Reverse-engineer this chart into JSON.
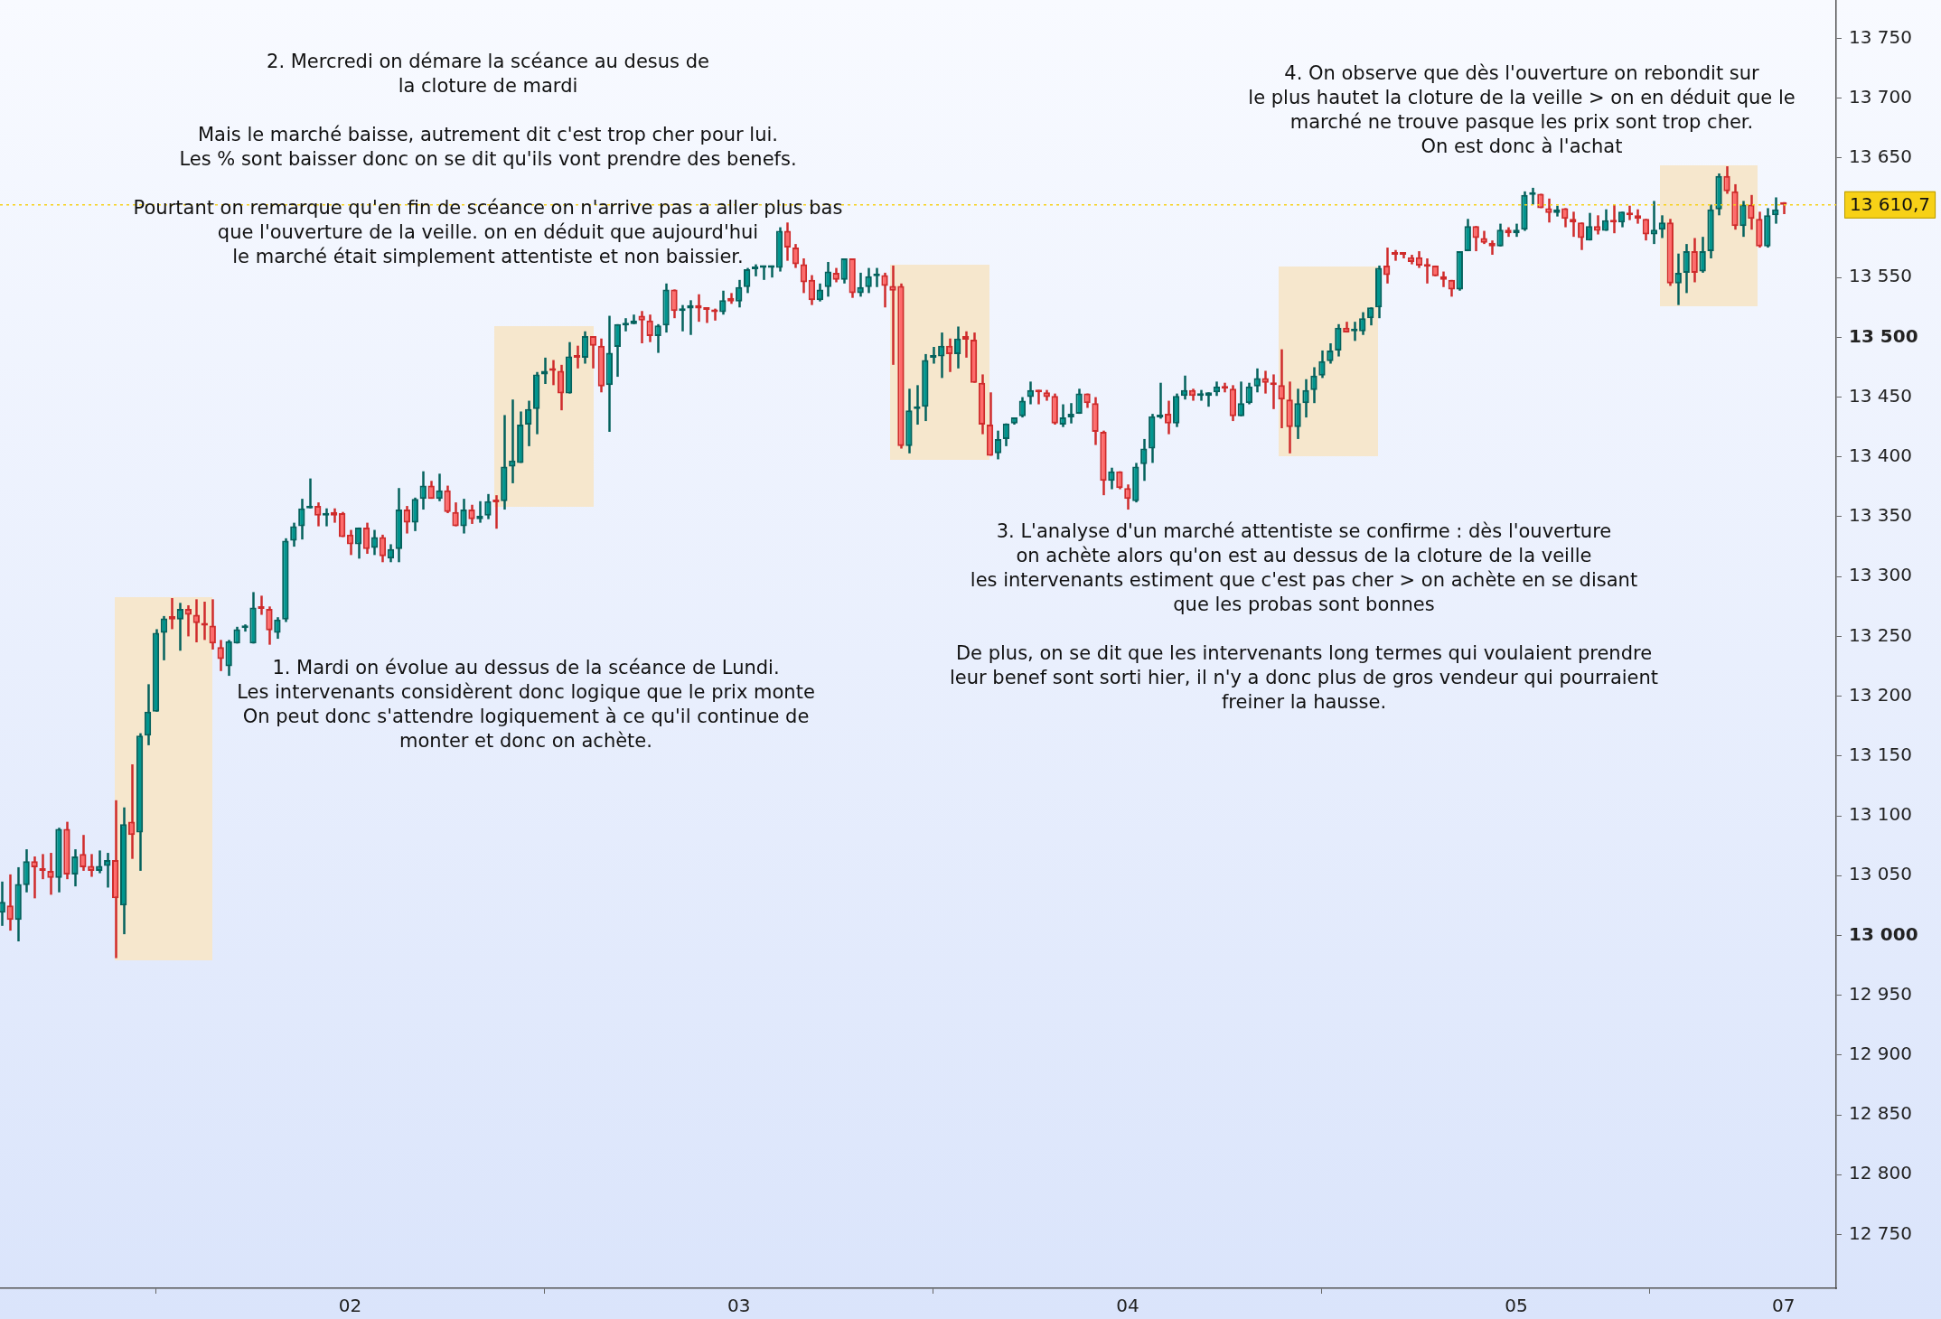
{
  "chart_data": {
    "type": "candlestick",
    "annotations": [
      "2. Mercredi on démare la scéance au desus de\nla cloture de mardi\n\nMais le marché baisse, autrement dit c'est trop cher pour lui.\nLes % sont baisser donc on se dit qu'ils vont prendre des benefs.\n\nPourtant on remarque qu'en fin de scéance on n'arrive pas a aller plus bas\nque l'ouverture de la veille. on en déduit que aujourd'hui\nle marché était simplement attentiste et non baissier.",
      "4. On observe que dès l'ouverture on rebondit sur\nle plus hautet la cloture de la veille > on en déduit que le\nmarché ne trouve pasque les prix sont trop cher.\nOn est donc à l'achat",
      "1. Mardi on évolue au dessus de la scéance de Lundi.\nLes intervenants considèrent donc logique que le prix monte\nOn peut donc s'attendre logiquement à ce qu'il continue de\nmonter et donc on achète.",
      "3. L'analyse d'un marché attentiste se confirme : dès l'ouverture\non achète alors qu'on est au dessus de la cloture de la veille\nles intervenants estiment que c'est pas cher > on achète en se disant\nque les probas sont bonnes\n\nDe plus, on se dit que les intervenants long termes qui voulaient prendre\nleur benef sont sorti hier, il n'y a donc plus de gros vendeur qui pourraient\nfreiner la hausse."
    ],
    "categories": [
      null,
      null,
      null,
      null,
      null,
      null,
      null,
      null,
      null,
      null,
      null,
      null,
      null,
      null,
      null,
      null,
      null,
      null,
      null,
      null,
      null,
      null,
      null,
      null,
      null,
      null,
      null,
      null,
      null,
      null,
      null,
      null,
      null,
      null,
      null,
      null,
      null,
      null,
      null,
      null,
      null,
      null,
      null,
      "02",
      null,
      null,
      null,
      null,
      null,
      null,
      null,
      null,
      null,
      null,
      null,
      null,
      null,
      null,
      null,
      null,
      null,
      null,
      null,
      null,
      null,
      null,
      null,
      null,
      null,
      null,
      null,
      null,
      null,
      null,
      null,
      null,
      null,
      null,
      null,
      null,
      null,
      null,
      null,
      null,
      null,
      null,
      null,
      null,
      null,
      null,
      null,
      "03",
      null,
      null,
      null,
      null,
      null,
      null,
      null,
      null,
      null,
      null,
      null,
      null,
      null,
      null,
      null,
      null,
      null,
      null,
      null,
      null,
      null,
      null,
      null,
      null,
      null,
      null,
      null,
      null,
      null,
      null,
      null,
      null,
      null,
      null,
      null,
      null,
      null,
      null,
      null,
      null,
      null,
      null,
      null,
      null,
      null,
      null,
      null,
      "04",
      null,
      null,
      null,
      null,
      null,
      null,
      null,
      null,
      null,
      null,
      null,
      null,
      null,
      null,
      null,
      null,
      null,
      null,
      null,
      null,
      null,
      null,
      null,
      null,
      null,
      null,
      null,
      null,
      null,
      null,
      null,
      null,
      null,
      null,
      null,
      null,
      null,
      null,
      null,
      null,
      null,
      null,
      null,
      null,
      null,
      null,
      null,
      "05",
      null,
      null,
      null,
      null,
      null,
      null,
      null,
      null,
      null,
      null,
      null,
      null,
      null,
      null,
      null,
      null,
      null,
      null,
      null,
      null,
      null,
      null,
      null,
      null,
      null,
      null,
      null,
      null,
      null,
      null,
      null,
      null,
      "07"
    ],
    "ohlc": [
      [
        13019,
        13045,
        13008,
        13028
      ],
      [
        13025,
        13051,
        13004,
        13013
      ],
      [
        13013,
        13057,
        12995,
        13043
      ],
      [
        13042,
        13072,
        13036,
        13062
      ],
      [
        13062,
        13066,
        13031,
        13057
      ],
      [
        13055,
        13068,
        13047,
        13054
      ],
      [
        13054,
        13069,
        13034,
        13048
      ],
      [
        13048,
        13090,
        13036,
        13089
      ],
      [
        13089,
        13095,
        13047,
        13051
      ],
      [
        13051,
        13072,
        13041,
        13066
      ],
      [
        13068,
        13084,
        13054,
        13057
      ],
      [
        13058,
        13068,
        13049,
        13054
      ],
      [
        13054,
        13071,
        13052,
        13058
      ],
      [
        13058,
        13069,
        13040,
        13063
      ],
      [
        13063,
        13113,
        12981,
        13031
      ],
      [
        13025,
        13107,
        13001,
        13093
      ],
      [
        13095,
        13143,
        13064,
        13084
      ],
      [
        13086,
        13169,
        13054,
        13167
      ],
      [
        13167,
        13210,
        13159,
        13187
      ],
      [
        13187,
        13256,
        13187,
        13253
      ],
      [
        13253,
        13267,
        13230,
        13265
      ],
      [
        13267,
        13282,
        13256,
        13264
      ],
      [
        13264,
        13278,
        13238,
        13273
      ],
      [
        13273,
        13276,
        13250,
        13268
      ],
      [
        13268,
        13281,
        13245,
        13261
      ],
      [
        13261,
        13279,
        13247,
        13259
      ],
      [
        13259,
        13281,
        13239,
        13244
      ],
      [
        13241,
        13247,
        13221,
        13231
      ],
      [
        13225,
        13247,
        13217,
        13246
      ],
      [
        13244,
        13258,
        13244,
        13256
      ],
      [
        13257,
        13260,
        13254,
        13258
      ],
      [
        13244,
        13287,
        13244,
        13274
      ],
      [
        13274,
        13284,
        13268,
        13273
      ],
      [
        13273,
        13275,
        13243,
        13255
      ],
      [
        13253,
        13266,
        13248,
        13264
      ],
      [
        13264,
        13332,
        13262,
        13330
      ],
      [
        13330,
        13345,
        13325,
        13342
      ],
      [
        13342,
        13365,
        13331,
        13357
      ],
      [
        13357,
        13382,
        13357,
        13359
      ],
      [
        13359,
        13362,
        13342,
        13351
      ],
      [
        13351,
        13357,
        13342,
        13353
      ],
      [
        13354,
        13357,
        13345,
        13351
      ],
      [
        13353,
        13354,
        13333,
        13333
      ],
      [
        13335,
        13339,
        13318,
        13327
      ],
      [
        13327,
        13341,
        13315,
        13341
      ],
      [
        13341,
        13345,
        13319,
        13323
      ],
      [
        13324,
        13339,
        13318,
        13333
      ],
      [
        13333,
        13335,
        13312,
        13317
      ],
      [
        13315,
        13327,
        13312,
        13323
      ],
      [
        13323,
        13374,
        13312,
        13356
      ],
      [
        13356,
        13359,
        13336,
        13345
      ],
      [
        13345,
        13366,
        13338,
        13365
      ],
      [
        13365,
        13388,
        13356,
        13376
      ],
      [
        13376,
        13380,
        13365,
        13365
      ],
      [
        13365,
        13386,
        13363,
        13372
      ],
      [
        13372,
        13376,
        13353,
        13354
      ],
      [
        13354,
        13362,
        13342,
        13342
      ],
      [
        13342,
        13365,
        13336,
        13356
      ],
      [
        13356,
        13360,
        13344,
        13348
      ],
      [
        13348,
        13363,
        13345,
        13351
      ],
      [
        13351,
        13369,
        13348,
        13363
      ],
      [
        13363,
        13368,
        13340,
        13362
      ],
      [
        13363,
        13435,
        13356,
        13392
      ],
      [
        13392,
        13448,
        13378,
        13397
      ],
      [
        13395,
        13438,
        13395,
        13427
      ],
      [
        13427,
        13447,
        13409,
        13440
      ],
      [
        13440,
        13471,
        13419,
        13469
      ],
      [
        13469,
        13483,
        13461,
        13472
      ],
      [
        13474,
        13481,
        13460,
        13472
      ],
      [
        13472,
        13477,
        13439,
        13453
      ],
      [
        13453,
        13496,
        13453,
        13484
      ],
      [
        13484,
        13493,
        13474,
        13483
      ],
      [
        13483,
        13505,
        13478,
        13501
      ],
      [
        13501,
        13501,
        13474,
        13493
      ],
      [
        13493,
        13499,
        13454,
        13459
      ],
      [
        13460,
        13518,
        13421,
        13487
      ],
      [
        13492,
        13511,
        13467,
        13511
      ],
      [
        13510,
        13516,
        13505,
        13511
      ],
      [
        13511,
        13519,
        13511,
        13514
      ],
      [
        13518,
        13522,
        13495,
        13514
      ],
      [
        13514,
        13519,
        13496,
        13501
      ],
      [
        13501,
        13511,
        13487,
        13510
      ],
      [
        13510,
        13545,
        13504,
        13540
      ],
      [
        13540,
        13540,
        13516,
        13522
      ],
      [
        13522,
        13527,
        13505,
        13524
      ],
      [
        13524,
        13531,
        13502,
        13527
      ],
      [
        13527,
        13536,
        13513,
        13524
      ],
      [
        13524,
        13525,
        13512,
        13523
      ],
      [
        13522,
        13524,
        13514,
        13521
      ],
      [
        13521,
        13539,
        13519,
        13531
      ],
      [
        13533,
        13537,
        13528,
        13530
      ],
      [
        13530,
        13548,
        13525,
        13542
      ],
      [
        13542,
        13558,
        13537,
        13557
      ],
      [
        13557,
        13561,
        13551,
        13558
      ],
      [
        13558,
        13560,
        13548,
        13558
      ],
      [
        13558,
        13560,
        13550,
        13558
      ],
      [
        13558,
        13592,
        13555,
        13589
      ],
      [
        13589,
        13596,
        13564,
        13575
      ],
      [
        13575,
        13578,
        13558,
        13561
      ],
      [
        13561,
        13566,
        13537,
        13546
      ],
      [
        13548,
        13552,
        13527,
        13531
      ],
      [
        13531,
        13545,
        13530,
        13540
      ],
      [
        13542,
        13563,
        13534,
        13555
      ],
      [
        13554,
        13558,
        13546,
        13548
      ],
      [
        13548,
        13566,
        13545,
        13566
      ],
      [
        13566,
        13566,
        13533,
        13537
      ],
      [
        13537,
        13554,
        13534,
        13542
      ],
      [
        13542,
        13558,
        13537,
        13551
      ],
      [
        13551,
        13558,
        13542,
        13552
      ],
      [
        13552,
        13554,
        13525,
        13543
      ],
      [
        13543,
        13560,
        13477,
        13539
      ],
      [
        13543,
        13545,
        13407,
        13409
      ],
      [
        13409,
        13457,
        13403,
        13439
      ],
      [
        13440,
        13460,
        13427,
        13441
      ],
      [
        13442,
        13486,
        13430,
        13481
      ],
      [
        13483,
        13492,
        13478,
        13484
      ],
      [
        13484,
        13504,
        13466,
        13493
      ],
      [
        13493,
        13499,
        13471,
        13486
      ],
      [
        13486,
        13509,
        13474,
        13499
      ],
      [
        13501,
        13505,
        13483,
        13498
      ],
      [
        13498,
        13504,
        13462,
        13462
      ],
      [
        13462,
        13469,
        13419,
        13427
      ],
      [
        13427,
        13454,
        13401,
        13401
      ],
      [
        13403,
        13422,
        13398,
        13415
      ],
      [
        13415,
        13428,
        13409,
        13428
      ],
      [
        13428,
        13433,
        13427,
        13433
      ],
      [
        13434,
        13450,
        13433,
        13447
      ],
      [
        13450,
        13463,
        13444,
        13456
      ],
      [
        13456,
        13456,
        13444,
        13454
      ],
      [
        13454,
        13456,
        13447,
        13450
      ],
      [
        13451,
        13453,
        13427,
        13428
      ],
      [
        13427,
        13444,
        13425,
        13433
      ],
      [
        13433,
        13445,
        13428,
        13436
      ],
      [
        13436,
        13457,
        13436,
        13453
      ],
      [
        13453,
        13453,
        13441,
        13445
      ],
      [
        13445,
        13450,
        13410,
        13421
      ],
      [
        13421,
        13422,
        13368,
        13380
      ],
      [
        13380,
        13391,
        13373,
        13388
      ],
      [
        13388,
        13388,
        13373,
        13374
      ],
      [
        13374,
        13377,
        13356,
        13365
      ],
      [
        13363,
        13395,
        13362,
        13392
      ],
      [
        13394,
        13415,
        13380,
        13407
      ],
      [
        13407,
        13436,
        13395,
        13434
      ],
      [
        13433,
        13462,
        13432,
        13434
      ],
      [
        13436,
        13447,
        13419,
        13428
      ],
      [
        13428,
        13453,
        13425,
        13451
      ],
      [
        13451,
        13468,
        13448,
        13456
      ],
      [
        13456,
        13457,
        13447,
        13451
      ],
      [
        13451,
        13456,
        13447,
        13451
      ],
      [
        13451,
        13454,
        13442,
        13454
      ],
      [
        13454,
        13463,
        13451,
        13459
      ],
      [
        13459,
        13462,
        13454,
        13457
      ],
      [
        13457,
        13460,
        13430,
        13434
      ],
      [
        13434,
        13463,
        13434,
        13445
      ],
      [
        13445,
        13462,
        13444,
        13459
      ],
      [
        13459,
        13474,
        13454,
        13466
      ],
      [
        13466,
        13472,
        13453,
        13462
      ],
      [
        13462,
        13469,
        13440,
        13460
      ],
      [
        13460,
        13490,
        13424,
        13448
      ],
      [
        13448,
        13463,
        13403,
        13425
      ],
      [
        13425,
        13457,
        13415,
        13445
      ],
      [
        13445,
        13465,
        13433,
        13456
      ],
      [
        13456,
        13475,
        13445,
        13468
      ],
      [
        13468,
        13489,
        13466,
        13480
      ],
      [
        13480,
        13495,
        13478,
        13489
      ],
      [
        13489,
        13511,
        13484,
        13508
      ],
      [
        13508,
        13513,
        13504,
        13504
      ],
      [
        13505,
        13513,
        13497,
        13505
      ],
      [
        13505,
        13521,
        13502,
        13516
      ],
      [
        13516,
        13525,
        13510,
        13525
      ],
      [
        13525,
        13560,
        13516,
        13558
      ],
      [
        13560,
        13575,
        13545,
        13552
      ],
      [
        13570,
        13573,
        13564,
        13569
      ],
      [
        13570,
        13570,
        13566,
        13569
      ],
      [
        13567,
        13569,
        13561,
        13563
      ],
      [
        13567,
        13572,
        13558,
        13560
      ],
      [
        13560,
        13566,
        13545,
        13559
      ],
      [
        13560,
        13560,
        13551,
        13551
      ],
      [
        13551,
        13555,
        13542,
        13548
      ],
      [
        13548,
        13548,
        13534,
        13540
      ],
      [
        13540,
        13572,
        13539,
        13572
      ],
      [
        13572,
        13599,
        13572,
        13593
      ],
      [
        13593,
        13593,
        13572,
        13583
      ],
      [
        13583,
        13589,
        13578,
        13579
      ],
      [
        13579,
        13581,
        13569,
        13576
      ],
      [
        13576,
        13595,
        13576,
        13590
      ],
      [
        13590,
        13592,
        13584,
        13587
      ],
      [
        13587,
        13595,
        13584,
        13590
      ],
      [
        13590,
        13622,
        13589,
        13619
      ],
      [
        13619,
        13625,
        13611,
        13620
      ],
      [
        13620,
        13620,
        13608,
        13608
      ],
      [
        13608,
        13616,
        13596,
        13604
      ],
      [
        13604,
        13610,
        13601,
        13607
      ],
      [
        13608,
        13608,
        13592,
        13599
      ],
      [
        13599,
        13605,
        13584,
        13596
      ],
      [
        13596,
        13596,
        13573,
        13583
      ],
      [
        13581,
        13604,
        13581,
        13593
      ],
      [
        13593,
        13602,
        13586,
        13589
      ],
      [
        13589,
        13607,
        13589,
        13598
      ],
      [
        13598,
        13611,
        13587,
        13596
      ],
      [
        13596,
        13605,
        13592,
        13605
      ],
      [
        13604,
        13610,
        13598,
        13602
      ],
      [
        13602,
        13607,
        13595,
        13599
      ],
      [
        13599,
        13599,
        13581,
        13586
      ],
      [
        13586,
        13614,
        13578,
        13590
      ],
      [
        13590,
        13602,
        13583,
        13596
      ],
      [
        13596,
        13599,
        13543,
        13545
      ],
      [
        13545,
        13570,
        13527,
        13554
      ],
      [
        13554,
        13578,
        13537,
        13572
      ],
      [
        13572,
        13583,
        13546,
        13554
      ],
      [
        13555,
        13584,
        13554,
        13572
      ],
      [
        13572,
        13611,
        13566,
        13607
      ],
      [
        13607,
        13637,
        13602,
        13635
      ],
      [
        13635,
        13643,
        13620,
        13622
      ],
      [
        13622,
        13628,
        13590,
        13593
      ],
      [
        13593,
        13614,
        13584,
        13611
      ],
      [
        13611,
        13619,
        13590,
        13599
      ],
      [
        13599,
        13605,
        13575,
        13576
      ],
      [
        13576,
        13608,
        13575,
        13602
      ],
      [
        13602,
        13617,
        13595,
        13607
      ],
      [
        13612,
        13613,
        13603,
        13610.7
      ]
    ],
    "ylim": [
      12705,
      13782
    ],
    "yticks": [
      {
        "value": 12750,
        "label": "12 750"
      },
      {
        "value": 12800,
        "label": "12 800"
      },
      {
        "value": 12850,
        "label": "12 850"
      },
      {
        "value": 12900,
        "label": "12 900"
      },
      {
        "value": 12950,
        "label": "12 950"
      },
      {
        "value": 13000,
        "label": "13 000"
      },
      {
        "value": 13050,
        "label": "13 050"
      },
      {
        "value": 13100,
        "label": "13 100"
      },
      {
        "value": 13150,
        "label": "13 150"
      },
      {
        "value": 13200,
        "label": "13 200"
      },
      {
        "value": 13250,
        "label": "13 250"
      },
      {
        "value": 13300,
        "label": "13 300"
      },
      {
        "value": 13350,
        "label": "13 350"
      },
      {
        "value": 13400,
        "label": "13 400"
      },
      {
        "value": 13450,
        "label": "13 450"
      },
      {
        "value": 13500,
        "label": "13 500"
      },
      {
        "value": 13550,
        "label": "13 550"
      },
      {
        "value": 13650,
        "label": "13 650"
      },
      {
        "value": 13700,
        "label": "13 700"
      },
      {
        "value": 13750,
        "label": "13 750"
      }
    ],
    "ref_lines": [
      {
        "axis": "y",
        "value": 13610.7,
        "label": "13 610,7",
        "color": "#f7d117"
      }
    ],
    "grid": false,
    "legend": false
  }
}
